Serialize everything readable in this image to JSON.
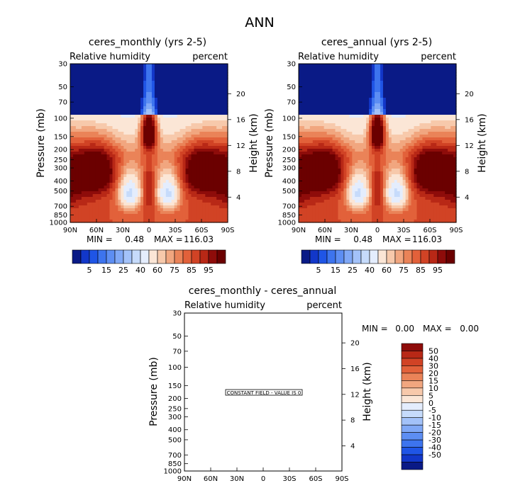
{
  "suptitle": "ANN",
  "colors": {
    "rh_palette": [
      "#0a1a86",
      "#1237c9",
      "#1f55e6",
      "#3d74ee",
      "#5d8ef3",
      "#80a8f6",
      "#a3c2f9",
      "#c6dbfb",
      "#e4edfd",
      "#fbe6d6",
      "#f7c9ab",
      "#f1a67f",
      "#ea8358",
      "#e2613a",
      "#d14325",
      "#b82816",
      "#8e0c0a",
      "#6b0000"
    ],
    "diff_palette": [
      "#0a1a86",
      "#1237c9",
      "#1f55e6",
      "#3d74ee",
      "#5d8ef3",
      "#80a8f6",
      "#a3c2f9",
      "#c6dbfb",
      "#e4edfd",
      "#fbe6d6",
      "#f7c9ab",
      "#f1a67f",
      "#ea8358",
      "#e2613a",
      "#d14325",
      "#b82816",
      "#8e0c0a"
    ]
  },
  "chart_data": [
    {
      "type": "contour",
      "name": "monthly",
      "title": "ceres_monthly (yrs 2-5)",
      "left_label": "Relative humidity",
      "right_label": "percent",
      "ylabel": "Pressure (mb)",
      "y2label": "Height (km)",
      "x_ticks": [
        "90N",
        "60N",
        "30N",
        "0",
        "30S",
        "60S",
        "90S"
      ],
      "y_ticks": [
        "30",
        "50",
        "70",
        "100",
        "150",
        "200",
        "250",
        "300",
        "400",
        "500",
        "700",
        "850",
        "1000"
      ],
      "y2_ticks": [
        "20",
        "16",
        "12",
        "8",
        "4"
      ],
      "min_label": "MIN =",
      "min_value": "0.48",
      "max_label": "MAX =",
      "max_value": "116.03",
      "colorbar_labels": [
        "5",
        "15",
        "25",
        "40",
        "60",
        "75",
        "85",
        "95"
      ],
      "colorbar_boxes": 18
    },
    {
      "type": "contour",
      "name": "annual",
      "title": "ceres_annual (yrs 2-5)",
      "left_label": "Relative humidity",
      "right_label": "percent",
      "ylabel": "Pressure (mb)",
      "y2label": "Height (km)",
      "x_ticks": [
        "90N",
        "60N",
        "30N",
        "0",
        "30S",
        "60S",
        "90S"
      ],
      "y_ticks": [
        "30",
        "50",
        "70",
        "100",
        "150",
        "200",
        "250",
        "300",
        "400",
        "500",
        "700",
        "850",
        "1000"
      ],
      "y2_ticks": [
        "20",
        "16",
        "12",
        "8",
        "4"
      ],
      "min_label": "MIN =",
      "min_value": "0.48",
      "max_label": "MAX =",
      "max_value": "116.03",
      "colorbar_labels": [
        "5",
        "15",
        "25",
        "40",
        "60",
        "75",
        "85",
        "95"
      ],
      "colorbar_boxes": 18
    },
    {
      "type": "contour",
      "name": "difference",
      "title": "ceres_monthly - ceres_annual",
      "left_label": "Relative humidity",
      "right_label": "percent",
      "ylabel": "Pressure (mb)",
      "y2label": "Height (km)",
      "x_ticks": [
        "90N",
        "60N",
        "30N",
        "0",
        "30S",
        "60S",
        "90S"
      ],
      "y_ticks": [
        "30",
        "50",
        "70",
        "100",
        "150",
        "200",
        "250",
        "300",
        "400",
        "500",
        "700",
        "850",
        "1000"
      ],
      "y2_ticks": [
        "20",
        "16",
        "12",
        "8",
        "4"
      ],
      "min_label": "MIN =",
      "min_value": "0.00",
      "max_label": "MAX =",
      "max_value": "0.00",
      "constant_field_label": "CONSTANT FIELD - VALUE IS 0",
      "colorbar_labels": [
        "50",
        "40",
        "30",
        "20",
        "15",
        "10",
        "5",
        "0",
        "-5",
        "-10",
        "-15",
        "-20",
        "-30",
        "-40",
        "-50"
      ],
      "colorbar_boxes": 17
    }
  ]
}
